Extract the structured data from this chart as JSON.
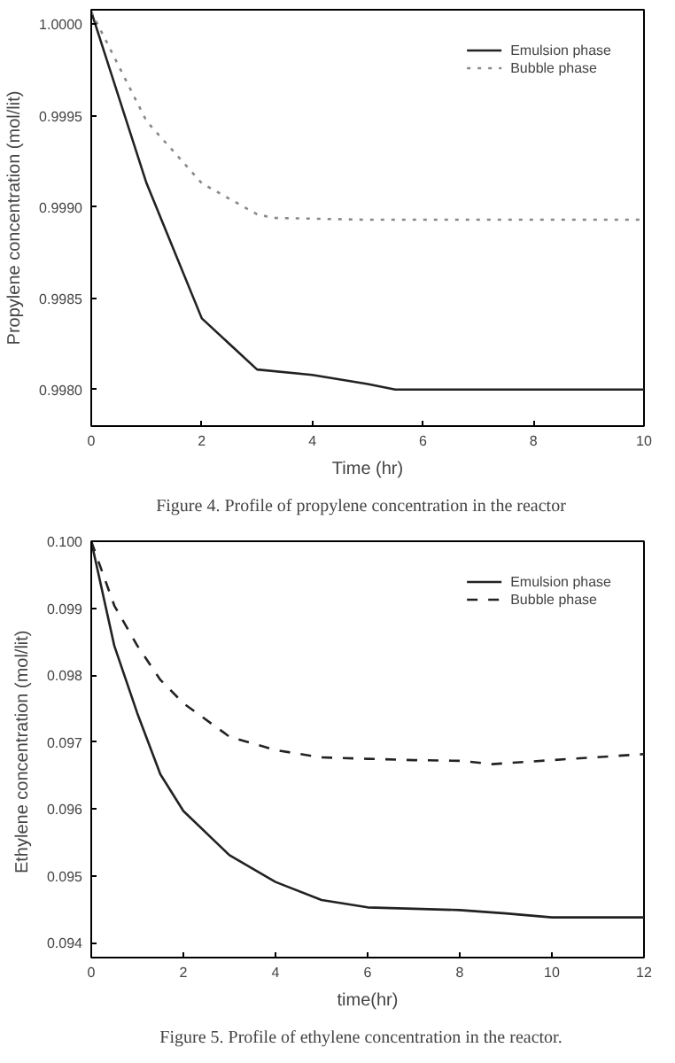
{
  "chart_data": [
    {
      "type": "line",
      "xlabel": "Time (hr)",
      "ylabel": "Propylene concentration (mol/lit)",
      "annotations": [
        "Figure 4.    Profile of propylene concentration in the reactor"
      ],
      "xlim": [
        0,
        10
      ],
      "xticks": [
        0,
        2,
        4,
        6,
        8,
        10
      ],
      "ylim": [
        0.9978,
        1.00008
      ],
      "yticks": [
        {
          "value": 0.998,
          "label": "0.9980"
        },
        {
          "value": 0.9985,
          "label": "0.9985"
        },
        {
          "value": 0.999,
          "label": "0.9990"
        },
        {
          "value": 0.9995,
          "label": "0.9995"
        },
        {
          "value": 1.0,
          "label": "1.0000"
        }
      ],
      "grid": false,
      "legend": "top right",
      "x": [
        0,
        1,
        2,
        3,
        4,
        5,
        5.5,
        6,
        8,
        10
      ],
      "series": [
        {
          "name": "Emulsion phase",
          "color": "#222222",
          "line_style": "solid",
          "values": [
            1.00007,
            0.99913,
            0.99839,
            0.99811,
            0.99808,
            0.99803,
            0.998,
            0.998,
            0.998,
            0.998
          ]
        },
        {
          "name": "Bubble phase",
          "color": "#888888",
          "line_style": "dotted",
          "x": [
            0,
            1,
            2,
            3,
            3.3,
            5,
            10
          ],
          "values": [
            1.00007,
            0.99947,
            0.99913,
            0.99896,
            0.99894,
            0.99893,
            0.99893
          ]
        }
      ]
    },
    {
      "type": "line",
      "xlabel": "time(hr)",
      "ylabel": "Ethylene concentration  (mol/lit)",
      "annotations": [
        "Figure 5.    Profile of ethylene concentration in the reactor."
      ],
      "xlim": [
        0,
        12
      ],
      "xticks": [
        0,
        2,
        4,
        6,
        8,
        10,
        12
      ],
      "ylim": [
        0.09378,
        0.1
      ],
      "yticks": [
        0.094,
        0.095,
        0.096,
        0.097,
        0.098,
        0.099,
        {
          "value": 0.1,
          "label": "0.100"
        }
      ],
      "grid": false,
      "legend": "top right",
      "x": [
        0,
        0.5,
        1,
        1.5,
        2,
        3,
        4,
        5,
        6,
        7,
        8,
        9,
        10,
        12
      ],
      "series": [
        {
          "name": "Emulsion phase",
          "color": "#222222",
          "line_style": "solid",
          "values": [
            0.1,
            0.09844,
            0.09743,
            0.09652,
            0.09597,
            0.09531,
            0.09491,
            0.09464,
            0.09453,
            0.09451,
            0.09449,
            0.09444,
            0.09438,
            0.09438
          ]
        },
        {
          "name": "Bubble phase",
          "color": "#222222",
          "line_style": "dashed",
          "x": [
            0,
            0.5,
            1,
            1.5,
            2,
            3,
            4,
            5,
            6,
            7,
            8,
            8.7,
            10,
            12
          ],
          "values": [
            0.1,
            0.09904,
            0.09844,
            0.09793,
            0.09758,
            0.09708,
            0.09688,
            0.09677,
            0.09675,
            0.09673,
            0.09672,
            0.09667,
            0.09673,
            0.09682
          ]
        }
      ]
    }
  ]
}
